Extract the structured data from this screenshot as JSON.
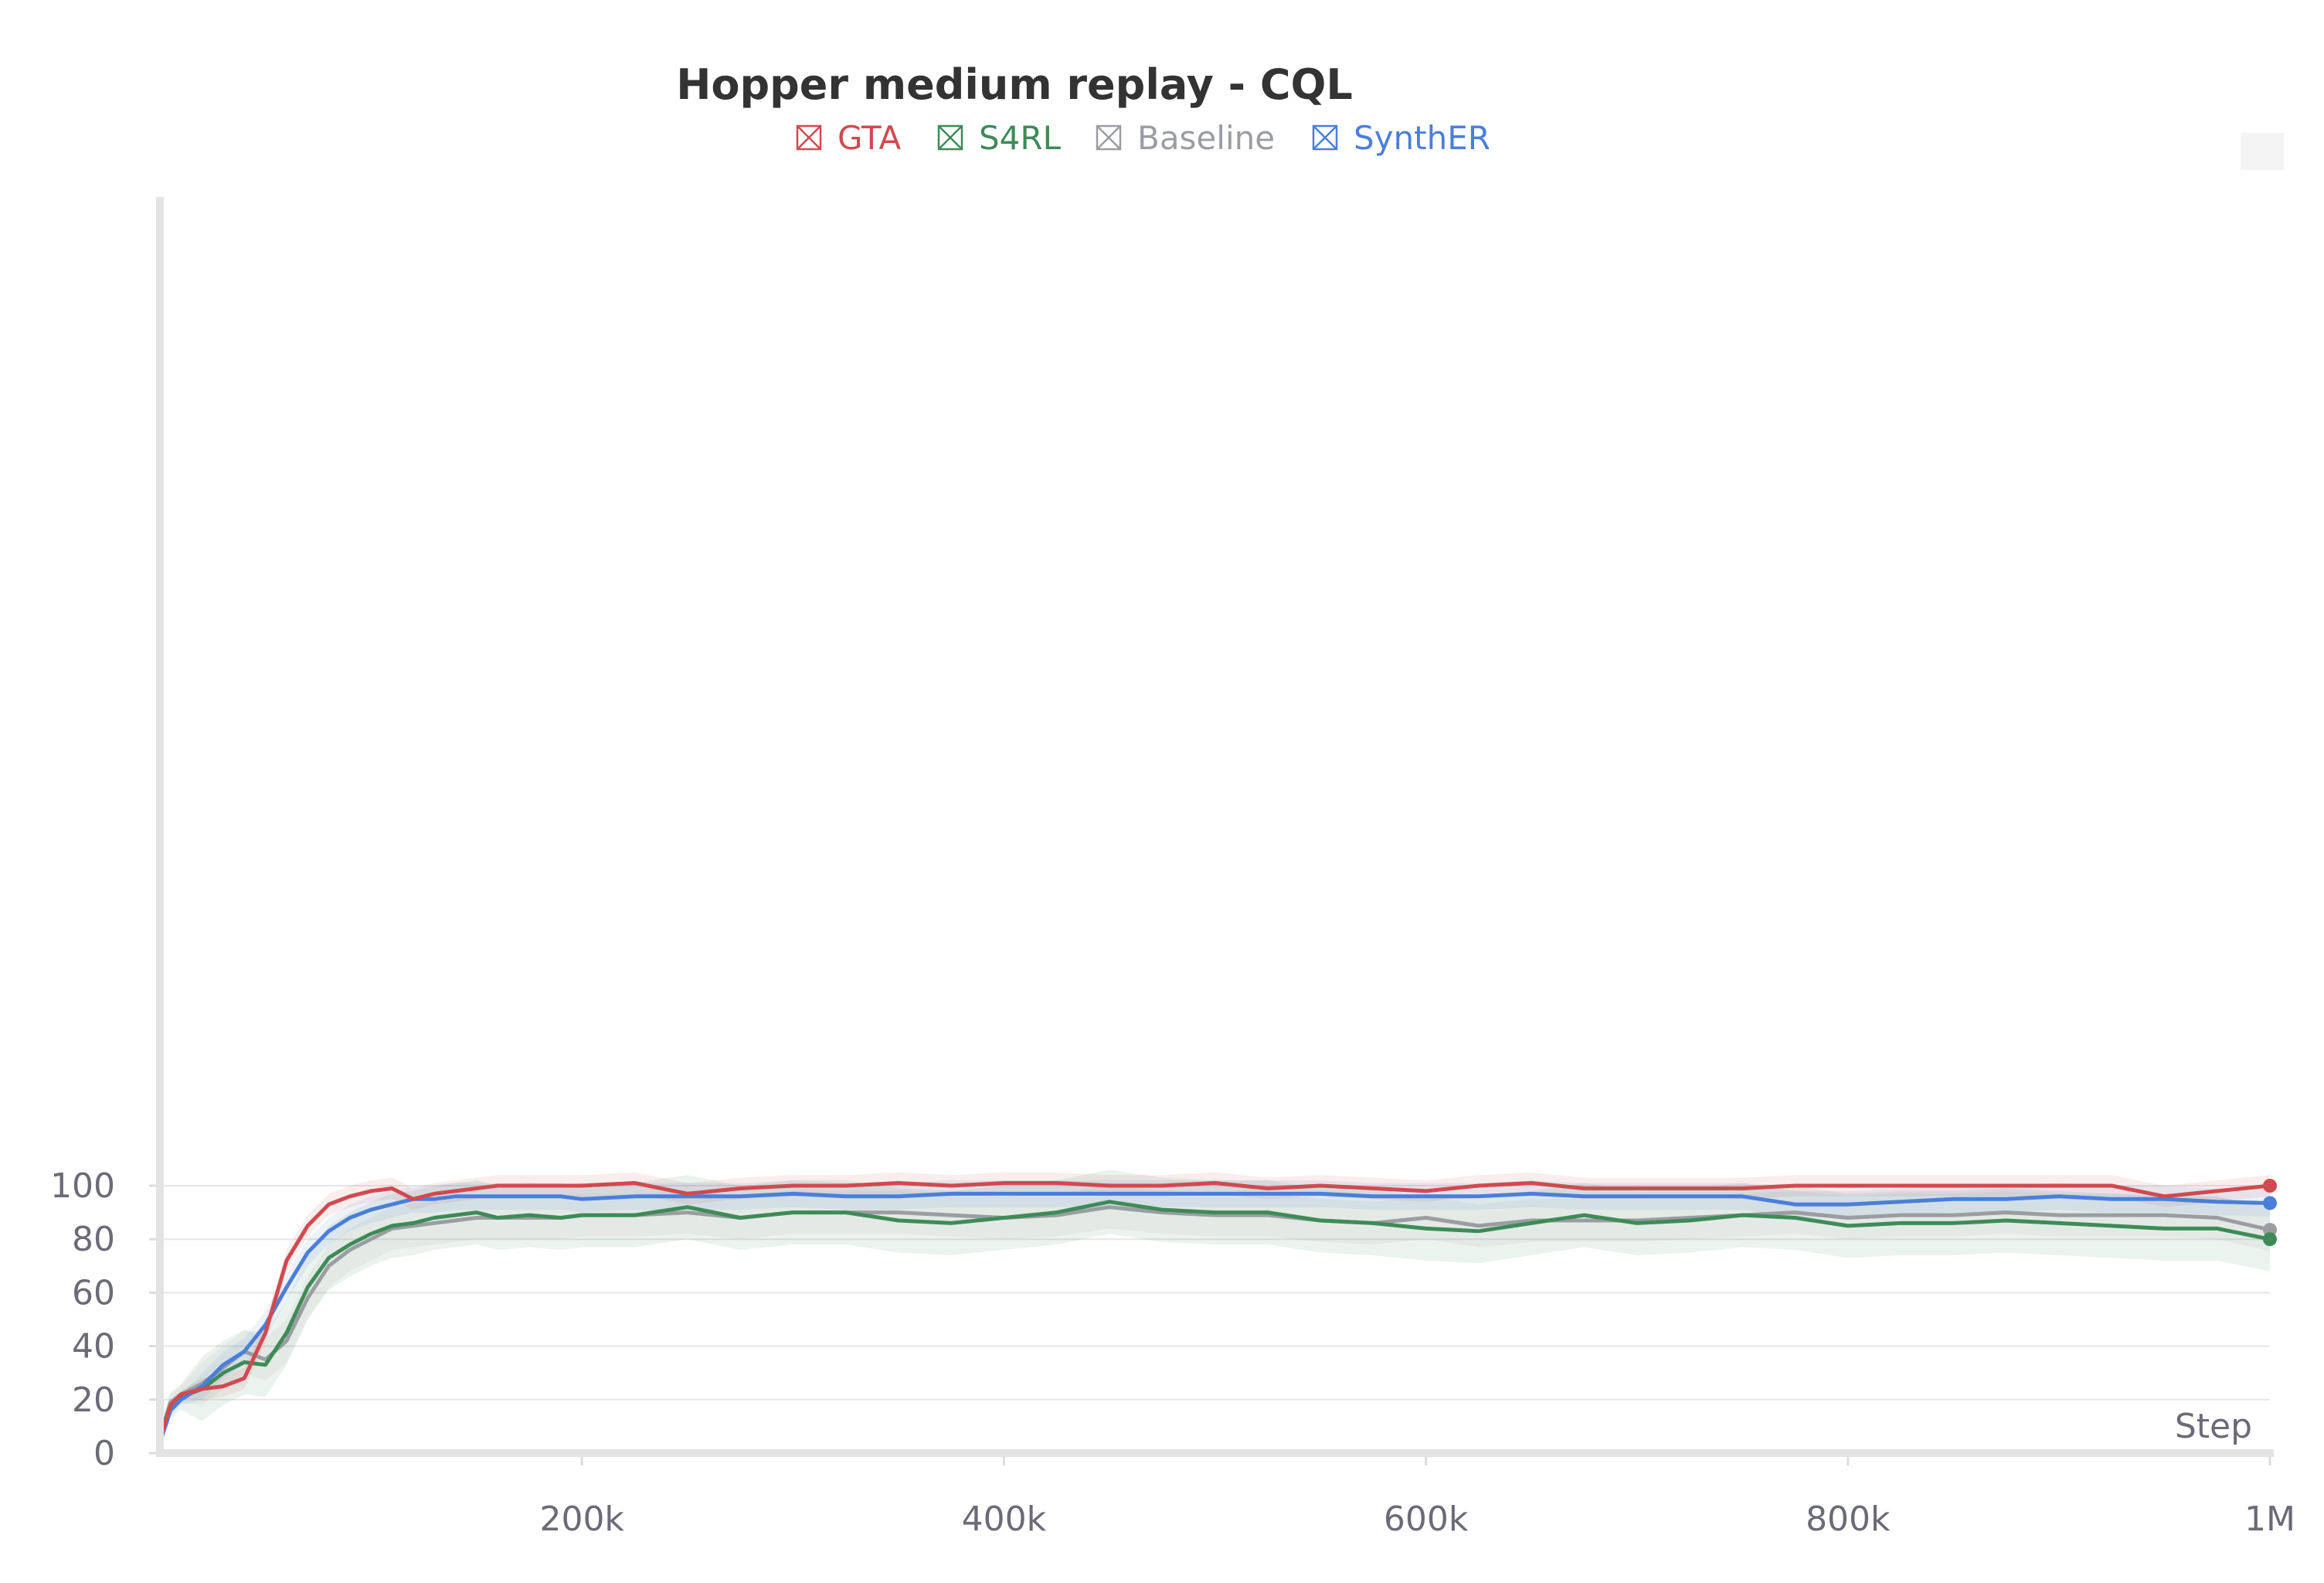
{
  "chart_data": {
    "type": "line",
    "title": "Hopper medium replay - CQL",
    "xlabel": "Step",
    "ylabel": "",
    "xlim": [
      0,
      1000000
    ],
    "ylim": [
      0,
      105
    ],
    "grid": true,
    "legend_position": "top-center",
    "x_ticks": [
      {
        "value": 200000,
        "label": "200k"
      },
      {
        "value": 400000,
        "label": "400k"
      },
      {
        "value": 600000,
        "label": "600k"
      },
      {
        "value": 800000,
        "label": "800k"
      },
      {
        "value": 1000000,
        "label": "1M"
      }
    ],
    "y_ticks": [
      {
        "value": 0,
        "label": "0"
      },
      {
        "value": 20,
        "label": "20"
      },
      {
        "value": 40,
        "label": "40"
      },
      {
        "value": 60,
        "label": "60"
      },
      {
        "value": 80,
        "label": "80"
      },
      {
        "value": 100,
        "label": "100"
      }
    ],
    "x": [
      0,
      5000,
      10000,
      20000,
      30000,
      40000,
      50000,
      60000,
      70000,
      80000,
      90000,
      100000,
      110000,
      120000,
      130000,
      140000,
      150000,
      160000,
      175000,
      190000,
      200000,
      225000,
      250000,
      275000,
      300000,
      325000,
      350000,
      375000,
      400000,
      425000,
      450000,
      475000,
      500000,
      525000,
      550000,
      575000,
      600000,
      625000,
      650000,
      675000,
      700000,
      725000,
      750000,
      775000,
      800000,
      825000,
      850000,
      875000,
      900000,
      925000,
      950000,
      975000,
      1000000
    ],
    "series": [
      {
        "name": "GTA",
        "color": "#d04a4f",
        "values": [
          5,
          18,
          22,
          24,
          25,
          28,
          45,
          72,
          85,
          93,
          96,
          98,
          99,
          95,
          97,
          98,
          99,
          100,
          100,
          100,
          100,
          101,
          97,
          99,
          100,
          100,
          101,
          100,
          101,
          101,
          100,
          100,
          101,
          99,
          100,
          99,
          98,
          100,
          101,
          99,
          99,
          99,
          99,
          100,
          100,
          100,
          100,
          100,
          100,
          100,
          96,
          98,
          100
        ],
        "band": 4
      },
      {
        "name": "S4RL",
        "color": "#3e8b57",
        "values": [
          6,
          18,
          21,
          24,
          30,
          34,
          33,
          45,
          62,
          73,
          78,
          82,
          85,
          86,
          88,
          89,
          90,
          88,
          89,
          88,
          89,
          89,
          92,
          88,
          90,
          90,
          87,
          86,
          88,
          90,
          94,
          91,
          90,
          90,
          87,
          86,
          84,
          83,
          86,
          89,
          86,
          87,
          89,
          88,
          85,
          86,
          86,
          87,
          86,
          85,
          84,
          84,
          80
        ],
        "band": 12
      },
      {
        "name": "Baseline",
        "color": "#9b9da2",
        "values": [
          6,
          19,
          22,
          26,
          32,
          38,
          35,
          42,
          58,
          70,
          76,
          80,
          84,
          85,
          86,
          87,
          88,
          88,
          88,
          88,
          89,
          89,
          90,
          88,
          90,
          90,
          90,
          89,
          88,
          89,
          92,
          90,
          89,
          89,
          87,
          86,
          88,
          85,
          87,
          87,
          87,
          88,
          89,
          90,
          88,
          89,
          89,
          90,
          89,
          89,
          89,
          88,
          83.5
        ],
        "band": 8
      },
      {
        "name": "SynthER",
        "color": "#4a7fd9",
        "values": [
          4,
          16,
          20,
          25,
          33,
          38,
          48,
          62,
          75,
          83,
          88,
          91,
          93,
          95,
          95,
          96,
          96,
          96,
          96,
          96,
          95,
          96,
          96,
          96,
          97,
          96,
          96,
          97,
          97,
          97,
          97,
          97,
          97,
          97,
          97,
          96,
          96,
          96,
          97,
          96,
          96,
          96,
          96,
          93,
          93,
          94,
          95,
          95,
          96,
          95,
          95,
          94,
          93.5
        ],
        "band": 5
      }
    ]
  }
}
